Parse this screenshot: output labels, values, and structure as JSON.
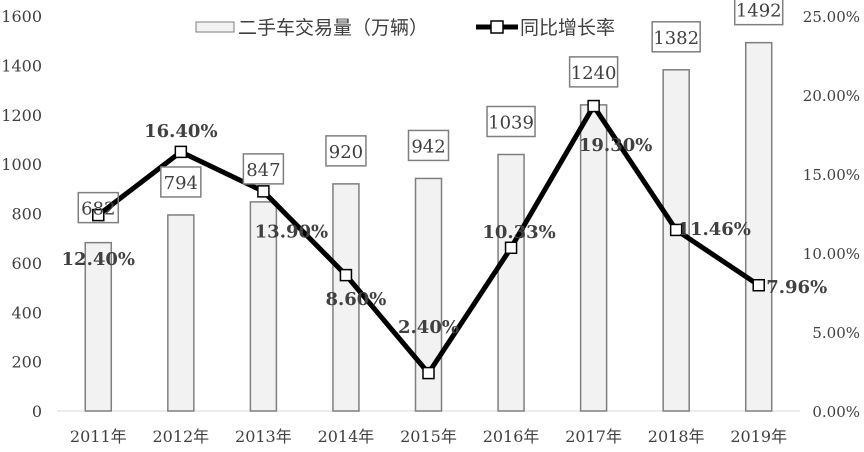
{
  "chart_data": {
    "type": "bar+line",
    "categories": [
      "2011年",
      "2012年",
      "2013年",
      "2014年",
      "2015年",
      "2016年",
      "2017年",
      "2018年",
      "2019年"
    ],
    "series": [
      {
        "name": "二手车交易量（万辆）",
        "type": "bar",
        "axis": "left",
        "values": [
          682,
          794,
          847,
          920,
          942,
          1039,
          1240,
          1382,
          1492
        ],
        "labels": [
          "682",
          "794",
          "847",
          "920",
          "942",
          "1039",
          "1240",
          "1382",
          "1492"
        ]
      },
      {
        "name": "同比增长率",
        "type": "line",
        "axis": "right",
        "values": [
          12.4,
          16.4,
          13.9,
          8.6,
          2.4,
          10.33,
          19.3,
          11.46,
          7.96
        ],
        "labels": [
          "12.40%",
          "16.40%",
          "13.90%",
          "8.60%",
          "2.40%",
          "10.33%",
          "19.30%",
          "11.46%",
          "7.96%"
        ]
      }
    ],
    "y_left": {
      "range": [
        0,
        1600
      ],
      "ticks": [
        "0",
        "200",
        "400",
        "600",
        "800",
        "1000",
        "1200",
        "1400",
        "1600"
      ]
    },
    "y_right": {
      "range": [
        0,
        25
      ],
      "ticks": [
        "0.00%",
        "5.00%",
        "10.00%",
        "15.00%",
        "20.00%",
        "25.00%"
      ]
    },
    "grid": false,
    "legend": "top",
    "colors": {
      "bar_fill": "#f2f2f2",
      "bar_stroke": "#7f7f7f",
      "line": "#000000"
    }
  }
}
